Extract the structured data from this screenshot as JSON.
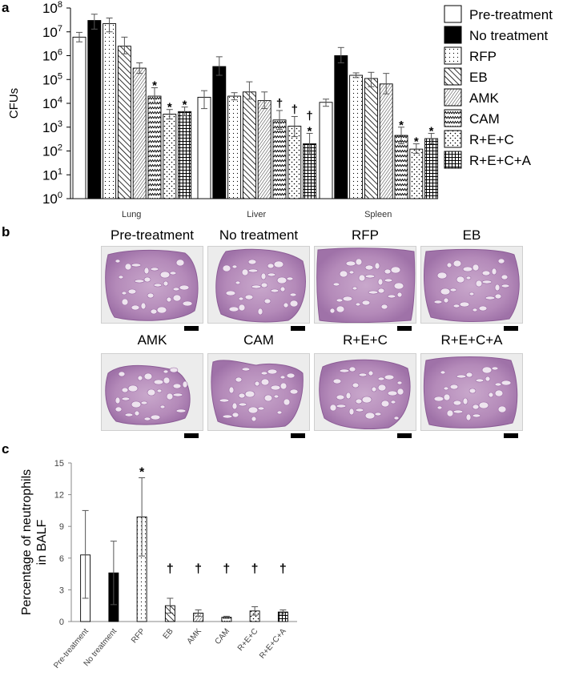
{
  "panels": {
    "a": "a",
    "b": "b",
    "c": "c"
  },
  "colors": {
    "black": "#000000",
    "white": "#ffffff",
    "tissue_pink": "#b78ab8",
    "slide_bg": "#ececec"
  },
  "histology": {
    "labels": [
      "Pre-treatment",
      "No treatment",
      "RFP",
      "EB",
      "AMK",
      "CAM",
      "R+E+C",
      "R+E+C+A"
    ]
  },
  "chart_data": [
    {
      "type": "bar",
      "panel": "a",
      "ylabel": "CFUs",
      "y_scale": "log10",
      "ylim": [
        1,
        100000000
      ],
      "yticks": [
        {
          "base": "10",
          "exp": "0"
        },
        {
          "base": "10",
          "exp": "1"
        },
        {
          "base": "10",
          "exp": "2"
        },
        {
          "base": "10",
          "exp": "3"
        },
        {
          "base": "10",
          "exp": "4"
        },
        {
          "base": "10",
          "exp": "5"
        },
        {
          "base": "10",
          "exp": "6"
        },
        {
          "base": "10",
          "exp": "7"
        },
        {
          "base": "10",
          "exp": "8"
        }
      ],
      "categories": [
        "Lung",
        "Liver",
        "Spleen"
      ],
      "legend_position": "right",
      "series": [
        {
          "name": "Pre-treatment",
          "pattern": "white",
          "values": [
            6000000,
            18000,
            11000
          ],
          "err_hi": [
            9500000,
            34000,
            15000
          ],
          "err_lo": [
            3800000,
            6000,
            7500
          ],
          "marks": [
            "",
            "",
            ""
          ]
        },
        {
          "name": "No treatment",
          "pattern": "black",
          "values": [
            30000000,
            350000,
            1000000
          ],
          "err_hi": [
            55000000,
            900000,
            2200000
          ],
          "err_lo": [
            13000000,
            150000,
            500000
          ],
          "marks": [
            "",
            "",
            ""
          ]
        },
        {
          "name": "RFP",
          "pattern": "dots",
          "values": [
            22000000,
            20000,
            150000
          ],
          "err_hi": [
            38000000,
            28000,
            190000
          ],
          "err_lo": [
            10000000,
            14000,
            120000
          ],
          "marks": [
            "",
            "",
            ""
          ]
        },
        {
          "name": "EB",
          "pattern": "diag",
          "values": [
            2500000,
            30000,
            110000
          ],
          "err_hi": [
            6000000,
            80000,
            200000
          ],
          "err_lo": [
            1200000,
            15000,
            50000
          ],
          "marks": [
            "",
            "",
            ""
          ]
        },
        {
          "name": "AMK",
          "pattern": "dense",
          "values": [
            300000,
            13000,
            65000
          ],
          "err_hi": [
            500000,
            30000,
            180000
          ],
          "err_lo": [
            180000,
            6000,
            25000
          ],
          "marks": [
            "",
            "",
            ""
          ]
        },
        {
          "name": "CAM",
          "pattern": "zigzag",
          "values": [
            20000,
            2000,
            450
          ],
          "err_hi": [
            45000,
            5000,
            1000
          ],
          "err_lo": [
            10000,
            800,
            200
          ],
          "marks": [
            "*",
            "†",
            "*"
          ]
        },
        {
          "name": "R+E+C",
          "pattern": "wavy",
          "values": [
            3500,
            1100,
            120
          ],
          "err_hi": [
            5500,
            2800,
            200
          ],
          "err_lo": [
            2200,
            400,
            80
          ],
          "marks": [
            "*",
            "†",
            "*"
          ]
        },
        {
          "name": "R+E+C+A",
          "pattern": "grid",
          "values": [
            4500,
            200,
            330
          ],
          "err_hi": [
            7000,
            550,
            550
          ],
          "err_lo": [
            3000,
            70,
            200
          ],
          "marks": [
            "*",
            "†*",
            "*"
          ]
        }
      ]
    },
    {
      "type": "bar",
      "panel": "c",
      "ylabel": "Percentage of neutrophils in BALF",
      "ylim": [
        0,
        15
      ],
      "yticks": [
        "0",
        "3",
        "6",
        "9",
        "12",
        "15"
      ],
      "categories": [
        "Pre-treatment",
        "No treatment",
        "RFP",
        "EB",
        "AMK",
        "CAM",
        "R+E+C",
        "R+E+C+A"
      ],
      "patterns": [
        "white",
        "black",
        "dots",
        "diag",
        "dense",
        "zigzag",
        "wavy",
        "grid"
      ],
      "values": [
        6.3,
        4.6,
        9.9,
        1.5,
        0.8,
        0.4,
        1.0,
        0.9
      ],
      "err_hi": [
        10.5,
        7.6,
        13.6,
        2.2,
        1.1,
        0.5,
        1.4,
        1.1
      ],
      "err_lo": [
        2.2,
        1.6,
        6.2,
        0.8,
        0.5,
        0.3,
        0.6,
        0.7
      ],
      "marks": [
        "",
        "",
        "*",
        "†",
        "†",
        "†",
        "†",
        "†"
      ]
    }
  ]
}
